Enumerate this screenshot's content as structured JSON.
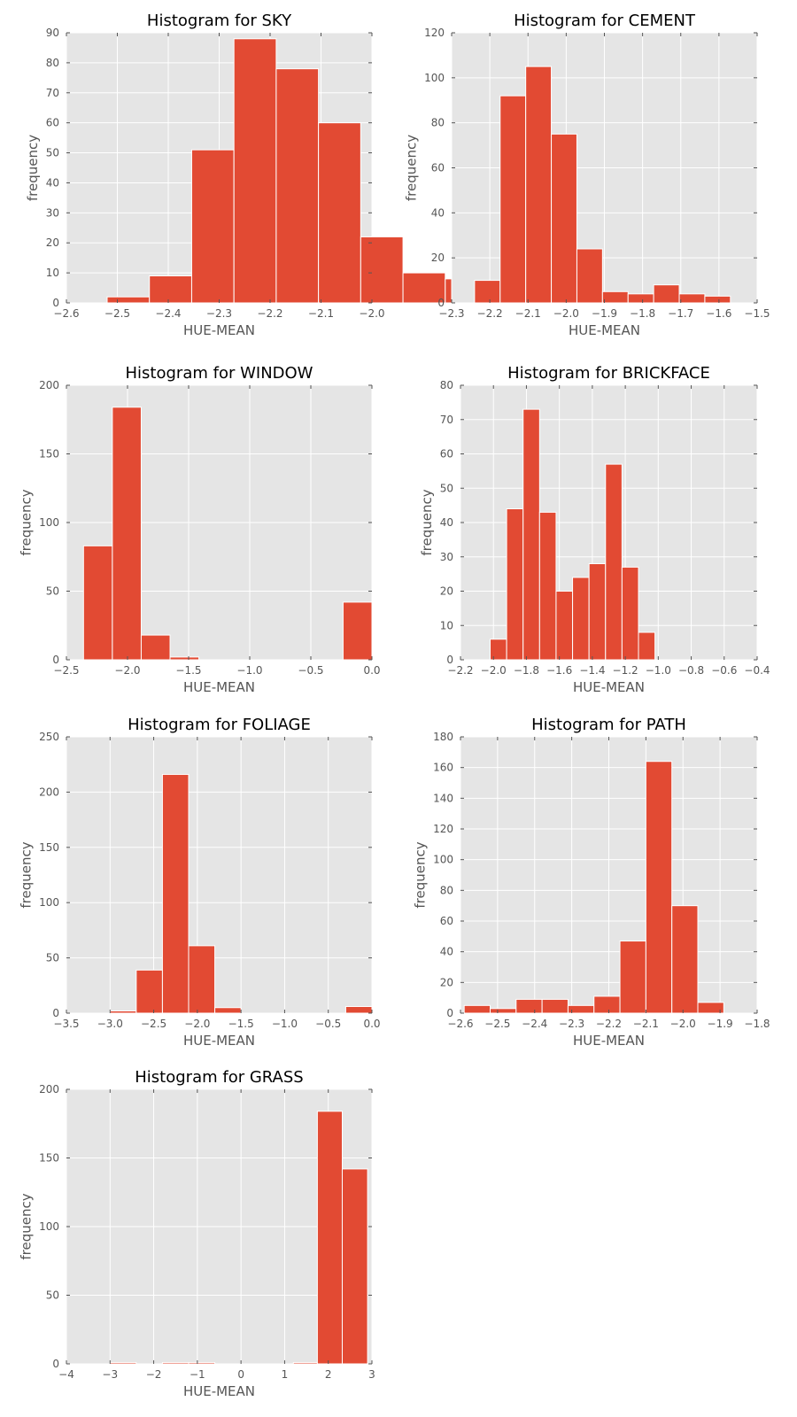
{
  "chart_data": [
    {
      "type": "bar",
      "title": "Histogram for SKY",
      "xlabel": "HUE-MEAN",
      "ylabel": "frequency",
      "xlim": [
        -2.6,
        -2.0
      ],
      "ylim": [
        0,
        90
      ],
      "xticks": [
        -2.6,
        -2.5,
        -2.4,
        -2.3,
        -2.2,
        -2.1,
        -2.0
      ],
      "xtick_labels": [
        "−2.6",
        "−2.5",
        "−2.4",
        "−2.3",
        "−2.2",
        "−2.1",
        "−2.0"
      ],
      "yticks": [
        0,
        10,
        20,
        30,
        40,
        50,
        60,
        70,
        80,
        90
      ],
      "ytick_labels": [
        "0",
        "10",
        "20",
        "30",
        "40",
        "50",
        "60",
        "70",
        "80",
        "90"
      ],
      "bin_edges": [
        -2.52,
        -2.437,
        -2.354,
        -2.271,
        -2.188,
        -2.105,
        -2.022,
        -1.939,
        -1.856,
        -1.773,
        -1.69
      ],
      "bins": [
        {
          "x0": -2.52,
          "x1": -2.437,
          "value": 2
        },
        {
          "x0": -2.437,
          "x1": -2.354,
          "value": 9
        },
        {
          "x0": -2.354,
          "x1": -2.271,
          "value": 51
        },
        {
          "x0": -2.271,
          "x1": -2.188,
          "value": 88
        },
        {
          "x0": -2.188,
          "x1": -2.105,
          "value": 78
        },
        {
          "x0": -2.105,
          "x1": -2.022,
          "value": 60
        },
        {
          "x0": -2.022,
          "x1": -1.939,
          "value": 22
        },
        {
          "x0": -1.939,
          "x1": -1.856,
          "value": 10
        },
        {
          "x0": -1.856,
          "x1": -1.773,
          "value": 8
        },
        {
          "x0": -1.773,
          "x1": -1.69,
          "value": 2
        }
      ],
      "grid": true
    },
    {
      "type": "bar",
      "title": "Histogram for CEMENT",
      "xlabel": "HUE-MEAN",
      "ylabel": "frequency",
      "xlim": [
        -2.3,
        -1.5
      ],
      "ylim": [
        0,
        120
      ],
      "xticks": [
        -2.3,
        -2.2,
        -2.1,
        -2.0,
        -1.9,
        -1.8,
        -1.7,
        -1.6,
        -1.5
      ],
      "xtick_labels": [
        "−2.3",
        "−2.2",
        "−2.1",
        "−2.0",
        "−1.9",
        "−1.8",
        "−1.7",
        "−1.6",
        "−1.5"
      ],
      "yticks": [
        0,
        20,
        40,
        60,
        80,
        100,
        120
      ],
      "ytick_labels": [
        "0",
        "20",
        "40",
        "60",
        "80",
        "100",
        "120"
      ],
      "bins": [
        {
          "x0": -2.24,
          "x1": -2.173,
          "value": 10
        },
        {
          "x0": -2.173,
          "x1": -2.106,
          "value": 92
        },
        {
          "x0": -2.106,
          "x1": -2.039,
          "value": 105
        },
        {
          "x0": -2.039,
          "x1": -1.972,
          "value": 75
        },
        {
          "x0": -1.972,
          "x1": -1.905,
          "value": 24
        },
        {
          "x0": -1.905,
          "x1": -1.838,
          "value": 5
        },
        {
          "x0": -1.838,
          "x1": -1.771,
          "value": 4
        },
        {
          "x0": -1.771,
          "x1": -1.704,
          "value": 8
        },
        {
          "x0": -1.704,
          "x1": -1.637,
          "value": 4
        },
        {
          "x0": -1.637,
          "x1": -1.57,
          "value": 3
        }
      ],
      "grid": true
    },
    {
      "type": "bar",
      "title": "Histogram for WINDOW",
      "xlabel": "HUE-MEAN",
      "ylabel": "frequency",
      "xlim": [
        -2.5,
        0.0
      ],
      "ylim": [
        0,
        200
      ],
      "xticks": [
        -2.5,
        -2.0,
        -1.5,
        -1.0,
        -0.5,
        0.0
      ],
      "xtick_labels": [
        "−2.5",
        "−2.0",
        "−1.5",
        "−1.0",
        "−0.5",
        "0.0"
      ],
      "yticks": [
        0,
        50,
        100,
        150,
        200
      ],
      "ytick_labels": [
        "0",
        "50",
        "100",
        "150",
        "200"
      ],
      "bins": [
        {
          "x0": -2.36,
          "x1": -2.124,
          "value": 83
        },
        {
          "x0": -2.124,
          "x1": -1.888,
          "value": 184
        },
        {
          "x0": -1.888,
          "x1": -1.652,
          "value": 18
        },
        {
          "x0": -1.652,
          "x1": -1.416,
          "value": 2
        },
        {
          "x0": -1.416,
          "x1": -1.18,
          "value": 0
        },
        {
          "x0": -1.18,
          "x1": -0.944,
          "value": 0
        },
        {
          "x0": -0.944,
          "x1": -0.708,
          "value": 0
        },
        {
          "x0": -0.708,
          "x1": -0.472,
          "value": 0
        },
        {
          "x0": -0.472,
          "x1": -0.236,
          "value": 0
        },
        {
          "x0": -0.236,
          "x1": 0.0,
          "value": 42
        }
      ],
      "grid": true
    },
    {
      "type": "bar",
      "title": "Histogram for BRICKFACE",
      "xlabel": "HUE-MEAN",
      "ylabel": "frequency",
      "xlim": [
        -2.2,
        -0.4
      ],
      "ylim": [
        0,
        80
      ],
      "xticks": [
        -2.2,
        -2.0,
        -1.8,
        -1.6,
        -1.4,
        -1.2,
        -1.0,
        -0.8,
        -0.6,
        -0.4
      ],
      "xtick_labels": [
        "−2.2",
        "−2.0",
        "−1.8",
        "−1.6",
        "−1.4",
        "−1.2",
        "−1.0",
        "−0.8",
        "−0.6",
        "−0.4"
      ],
      "yticks": [
        0,
        10,
        20,
        30,
        40,
        50,
        60,
        70,
        80
      ],
      "ytick_labels": [
        "0",
        "10",
        "20",
        "30",
        "40",
        "50",
        "60",
        "70",
        "80"
      ],
      "bins": [
        {
          "x0": -2.02,
          "x1": -1.92,
          "value": 6
        },
        {
          "x0": -1.92,
          "x1": -1.82,
          "value": 44
        },
        {
          "x0": -1.82,
          "x1": -1.72,
          "value": 73
        },
        {
          "x0": -1.72,
          "x1": -1.62,
          "value": 43
        },
        {
          "x0": -1.62,
          "x1": -1.52,
          "value": 20
        },
        {
          "x0": -1.52,
          "x1": -1.42,
          "value": 24
        },
        {
          "x0": -1.42,
          "x1": -1.32,
          "value": 28
        },
        {
          "x0": -1.32,
          "x1": -1.22,
          "value": 57
        },
        {
          "x0": -1.22,
          "x1": -1.12,
          "value": 27
        },
        {
          "x0": -1.12,
          "x1": -1.02,
          "value": 8
        }
      ],
      "grid": true
    },
    {
      "type": "bar",
      "title": "Histogram for FOLIAGE",
      "xlabel": "HUE-MEAN",
      "ylabel": "frequency",
      "xlim": [
        -3.5,
        0.0
      ],
      "ylim": [
        0,
        250
      ],
      "xticks": [
        -3.5,
        -3.0,
        -2.5,
        -2.0,
        -1.5,
        -1.0,
        -0.5,
        0.0
      ],
      "xtick_labels": [
        "−3.5",
        "−3.0",
        "−2.5",
        "−2.0",
        "−1.5",
        "−1.0",
        "−0.5",
        "0.0"
      ],
      "yticks": [
        0,
        50,
        100,
        150,
        200,
        250
      ],
      "ytick_labels": [
        "0",
        "50",
        "100",
        "150",
        "200",
        "250"
      ],
      "bins": [
        {
          "x0": -3.0,
          "x1": -2.7,
          "value": 2
        },
        {
          "x0": -2.7,
          "x1": -2.4,
          "value": 39
        },
        {
          "x0": -2.4,
          "x1": -2.1,
          "value": 216
        },
        {
          "x0": -2.1,
          "x1": -1.8,
          "value": 61
        },
        {
          "x0": -1.8,
          "x1": -1.5,
          "value": 5
        },
        {
          "x0": -1.5,
          "x1": -1.2,
          "value": 0
        },
        {
          "x0": -1.2,
          "x1": -0.9,
          "value": 0
        },
        {
          "x0": -0.9,
          "x1": -0.6,
          "value": 0
        },
        {
          "x0": -0.6,
          "x1": -0.3,
          "value": 0
        },
        {
          "x0": -0.3,
          "x1": 0.0,
          "value": 6
        }
      ],
      "grid": true
    },
    {
      "type": "bar",
      "title": "Histogram for PATH",
      "xlabel": "HUE-MEAN",
      "ylabel": "frequency",
      "xlim": [
        -2.6,
        -1.8
      ],
      "ylim": [
        0,
        180
      ],
      "xticks": [
        -2.6,
        -2.5,
        -2.4,
        -2.3,
        -2.2,
        -2.1,
        -2.0,
        -1.9,
        -1.8
      ],
      "xtick_labels": [
        "−2.6",
        "−2.5",
        "−2.4",
        "−2.3",
        "−2.2",
        "−2.1",
        "−2.0",
        "−1.9",
        "−1.8"
      ],
      "yticks": [
        0,
        20,
        40,
        60,
        80,
        100,
        120,
        140,
        160,
        180
      ],
      "ytick_labels": [
        "0",
        "20",
        "40",
        "60",
        "80",
        "100",
        "120",
        "140",
        "160",
        "180"
      ],
      "bins": [
        {
          "x0": -2.59,
          "x1": -2.52,
          "value": 5
        },
        {
          "x0": -2.52,
          "x1": -2.45,
          "value": 3
        },
        {
          "x0": -2.45,
          "x1": -2.38,
          "value": 9
        },
        {
          "x0": -2.38,
          "x1": -2.31,
          "value": 9
        },
        {
          "x0": -2.31,
          "x1": -2.24,
          "value": 5
        },
        {
          "x0": -2.24,
          "x1": -2.17,
          "value": 11
        },
        {
          "x0": -2.17,
          "x1": -2.1,
          "value": 47
        },
        {
          "x0": -2.1,
          "x1": -2.03,
          "value": 164
        },
        {
          "x0": -2.03,
          "x1": -1.96,
          "value": 70
        },
        {
          "x0": -1.96,
          "x1": -1.89,
          "value": 7
        }
      ],
      "grid": true
    },
    {
      "type": "bar",
      "title": "Histogram for GRASS",
      "xlabel": "HUE-MEAN",
      "ylabel": "frequency",
      "xlim": [
        -4,
        3
      ],
      "ylim": [
        0,
        200
      ],
      "xticks": [
        -4,
        -3,
        -2,
        -1,
        0,
        1,
        2,
        3
      ],
      "xtick_labels": [
        "−4",
        "−3",
        "−2",
        "−1",
        "0",
        "1",
        "2",
        "3"
      ],
      "yticks": [
        0,
        50,
        100,
        150,
        200
      ],
      "ytick_labels": [
        "0",
        "50",
        "100",
        "150",
        "200"
      ],
      "bins": [
        {
          "x0": -3.0,
          "x1": -2.4,
          "value": 1
        },
        {
          "x0": -2.4,
          "x1": -1.8,
          "value": 0
        },
        {
          "x0": -1.8,
          "x1": -1.2,
          "value": 1
        },
        {
          "x0": -1.2,
          "x1": -0.6,
          "value": 1
        },
        {
          "x0": -0.6,
          "x1": 0.0,
          "value": 0
        },
        {
          "x0": 0.0,
          "x1": 0.6,
          "value": 0
        },
        {
          "x0": 0.6,
          "x1": 1.2,
          "value": 0
        },
        {
          "x0": 1.2,
          "x1": 1.75,
          "value": 1
        },
        {
          "x0": 1.75,
          "x1": 2.32,
          "value": 184
        },
        {
          "x0": 2.32,
          "x1": 2.9,
          "value": 142
        }
      ],
      "grid": true
    }
  ],
  "colors": {
    "bar": "#e24a33",
    "panel": "#e5e5e5",
    "grid": "#ffffff",
    "text": "#555555"
  }
}
